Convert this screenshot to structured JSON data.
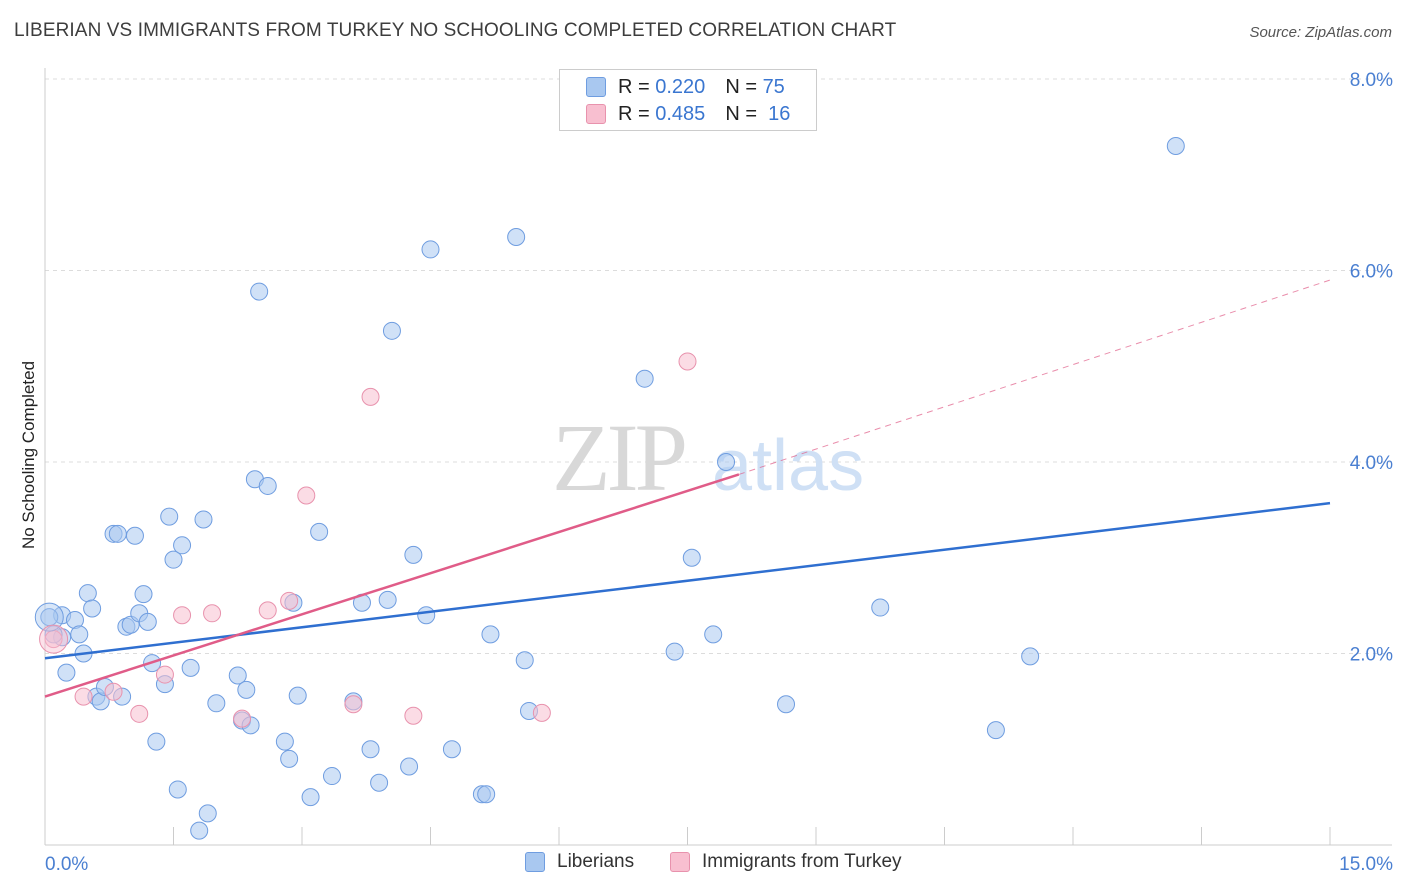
{
  "title": "LIBERIAN VS IMMIGRANTS FROM TURKEY NO SCHOOLING COMPLETED CORRELATION CHART",
  "source": "Source: ZipAtlas.com",
  "watermark": {
    "zip": "ZIP",
    "atlas": "atlas"
  },
  "legend": {
    "r_label": "R =",
    "n_label": "N =",
    "rows": [
      {
        "name": "Liberians",
        "r": "0.220",
        "n": "75",
        "color": "#a9c8f0",
        "stroke": "#6f9de0"
      },
      {
        "name": "Immigrants from Turkey",
        "r": "0.485",
        "n": "16",
        "color": "#f8bfd0",
        "stroke": "#e892ad"
      }
    ]
  },
  "bottom_legend": [
    "Liberians",
    "Immigrants from Turkey"
  ],
  "chart_data": {
    "type": "scatter",
    "title": "LIBERIAN VS IMMIGRANTS FROM TURKEY NO SCHOOLING COMPLETED CORRELATION CHART",
    "xlabel": "",
    "ylabel": "No Schooling Completed",
    "xlim": [
      0,
      15
    ],
    "ylim": [
      0,
      8.2
    ],
    "x_tick_labels": [
      "0.0%",
      "15.0%"
    ],
    "y_ticks": [
      2,
      4,
      6,
      8
    ],
    "y_tick_labels": [
      "2.0%",
      "4.0%",
      "6.0%",
      "8.0%"
    ],
    "grid": true,
    "series": [
      {
        "name": "Liberians",
        "color": "#a9c8f0",
        "stroke": "#6f9de0",
        "line_color": "#2f6fd0",
        "trend": {
          "x0": 0,
          "y0": 1.95,
          "x1": 15,
          "y1": 3.57
        },
        "points": [
          [
            0.2,
            2.17
          ],
          [
            0.2,
            2.4
          ],
          [
            0.35,
            2.35
          ],
          [
            0.4,
            2.2
          ],
          [
            0.45,
            2.0
          ],
          [
            0.5,
            2.63
          ],
          [
            0.55,
            2.47
          ],
          [
            0.25,
            1.8
          ],
          [
            0.6,
            1.55
          ],
          [
            0.65,
            1.5
          ],
          [
            0.7,
            1.65
          ],
          [
            0.8,
            3.25
          ],
          [
            0.85,
            3.25
          ],
          [
            0.9,
            1.55
          ],
          [
            0.95,
            2.28
          ],
          [
            1.0,
            2.3
          ],
          [
            1.05,
            3.23
          ],
          [
            1.1,
            2.42
          ],
          [
            1.15,
            2.62
          ],
          [
            1.2,
            2.33
          ],
          [
            1.25,
            1.9
          ],
          [
            1.3,
            1.08
          ],
          [
            1.4,
            1.68
          ],
          [
            1.45,
            3.43
          ],
          [
            1.5,
            2.98
          ],
          [
            1.55,
            0.58
          ],
          [
            1.6,
            3.13
          ],
          [
            1.7,
            1.85
          ],
          [
            1.8,
            0.15
          ],
          [
            1.85,
            3.4
          ],
          [
            1.9,
            0.33
          ],
          [
            2.0,
            1.48
          ],
          [
            2.25,
            1.77
          ],
          [
            2.3,
            1.3
          ],
          [
            2.35,
            1.62
          ],
          [
            2.4,
            1.25
          ],
          [
            2.45,
            3.82
          ],
          [
            2.5,
            5.78
          ],
          [
            2.6,
            3.75
          ],
          [
            2.8,
            1.08
          ],
          [
            2.85,
            0.9
          ],
          [
            2.9,
            2.53
          ],
          [
            2.95,
            1.56
          ],
          [
            3.1,
            0.5
          ],
          [
            3.2,
            3.27
          ],
          [
            3.35,
            0.72
          ],
          [
            3.6,
            1.5
          ],
          [
            3.7,
            2.53
          ],
          [
            3.8,
            1.0
          ],
          [
            3.9,
            0.65
          ],
          [
            4.0,
            2.56
          ],
          [
            4.05,
            5.37
          ],
          [
            4.25,
            0.82
          ],
          [
            4.3,
            3.03
          ],
          [
            4.45,
            2.4
          ],
          [
            4.5,
            6.22
          ],
          [
            4.75,
            1.0
          ],
          [
            5.1,
            0.53
          ],
          [
            5.15,
            0.53
          ],
          [
            5.2,
            2.2
          ],
          [
            5.5,
            6.35
          ],
          [
            5.6,
            1.93
          ],
          [
            5.65,
            1.4
          ],
          [
            7.0,
            4.87
          ],
          [
            7.35,
            2.02
          ],
          [
            7.55,
            3.0
          ],
          [
            7.8,
            2.2
          ],
          [
            7.95,
            4.0
          ],
          [
            8.65,
            1.47
          ],
          [
            9.75,
            2.48
          ],
          [
            11.1,
            1.2
          ],
          [
            11.5,
            1.97
          ],
          [
            13.2,
            7.3
          ],
          [
            0.05,
            2.38
          ],
          [
            0.1,
            2.2
          ]
        ]
      },
      {
        "name": "Immigrants from Turkey",
        "color": "#f8bfd0",
        "stroke": "#e892ad",
        "line_color": "#e05c88",
        "trend": {
          "x0": 0,
          "y0": 1.55,
          "x1": 8.1,
          "y1": 3.87
        },
        "trend_dashed": {
          "x0": 8.1,
          "y0": 3.87,
          "x1": 15,
          "y1": 5.9
        },
        "points": [
          [
            0.1,
            2.15
          ],
          [
            0.45,
            1.55
          ],
          [
            0.8,
            1.6
          ],
          [
            1.1,
            1.37
          ],
          [
            1.4,
            1.78
          ],
          [
            1.6,
            2.4
          ],
          [
            1.95,
            2.42
          ],
          [
            2.3,
            1.32
          ],
          [
            2.6,
            2.45
          ],
          [
            2.85,
            2.55
          ],
          [
            3.05,
            3.65
          ],
          [
            3.6,
            1.47
          ],
          [
            3.8,
            4.68
          ],
          [
            4.3,
            1.35
          ],
          [
            5.8,
            1.38
          ],
          [
            7.5,
            5.05
          ]
        ]
      }
    ]
  }
}
